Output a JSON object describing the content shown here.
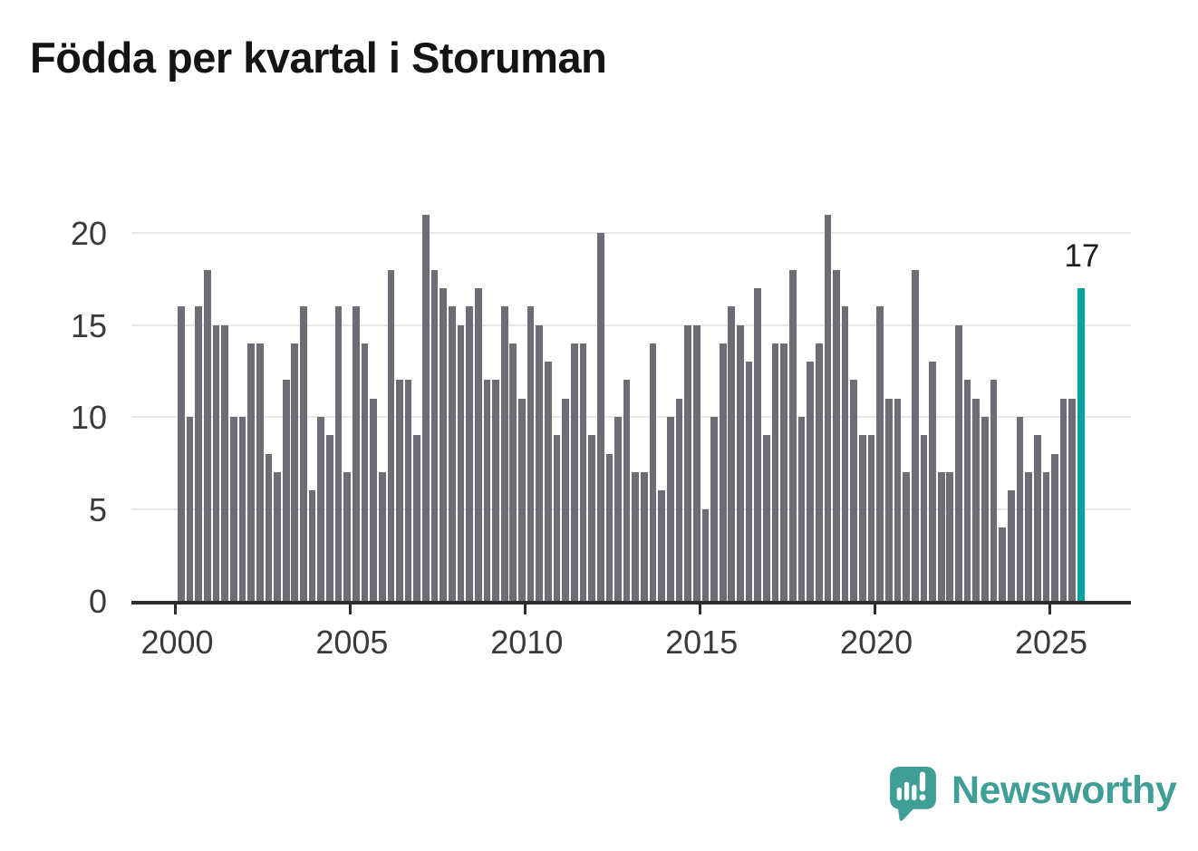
{
  "title": "Födda per kvartal i Storuman",
  "watermark": {
    "brand": "Newsworthy"
  },
  "colors": {
    "bar": "#6d6d76",
    "highlight": "#00a39e",
    "brand_teal": "#3f9e96",
    "grid": "#e7e7e8",
    "axis": "#2d2d30",
    "label_text": "#3a3a3a",
    "title_text": "#141414",
    "annotation_text": "#1e1e1e"
  },
  "chart_data": {
    "type": "bar",
    "title": "Födda per kvartal i Storuman",
    "xlabel": "",
    "ylabel": "",
    "x_start": "2000-Q1",
    "x_end": "2025-Q4",
    "x_tick_labels": [
      "2000",
      "2005",
      "2010",
      "2015",
      "2020",
      "2025"
    ],
    "y_tick_labels": [
      "0",
      "5",
      "10",
      "15",
      "20"
    ],
    "y_tick_values": [
      0,
      5,
      10,
      15,
      20
    ],
    "ylim": [
      0,
      21
    ],
    "grid": "horizontal",
    "legend": "none",
    "series_name": "Födda per kvartal",
    "values": [
      16,
      10,
      16,
      18,
      15,
      15,
      10,
      10,
      14,
      14,
      8,
      7,
      12,
      14,
      16,
      6,
      10,
      9,
      16,
      7,
      16,
      14,
      11,
      7,
      18,
      12,
      12,
      9,
      21,
      18,
      17,
      16,
      15,
      16,
      17,
      12,
      12,
      16,
      14,
      11,
      16,
      15,
      13,
      9,
      11,
      14,
      14,
      9,
      20,
      8,
      10,
      12,
      7,
      7,
      14,
      6,
      10,
      11,
      15,
      15,
      5,
      10,
      14,
      16,
      15,
      13,
      17,
      9,
      14,
      14,
      18,
      10,
      13,
      14,
      21,
      18,
      16,
      12,
      9,
      9,
      16,
      11,
      11,
      7,
      18,
      9,
      13,
      7,
      7,
      15,
      12,
      11,
      10,
      12,
      4,
      6,
      10,
      7,
      9,
      7,
      8,
      11,
      11,
      17
    ],
    "highlight_last": true,
    "highlight_value": 17,
    "highlight_label": "17"
  }
}
